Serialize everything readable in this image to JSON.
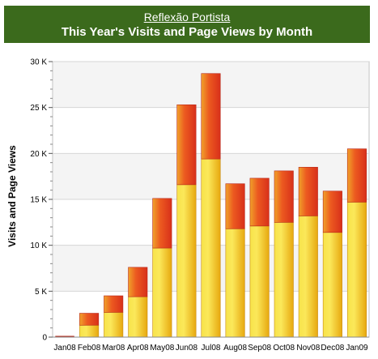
{
  "header": {
    "site_name": "Reflexão Portista",
    "title": "This Year's Visits and Page Views by Month"
  },
  "colors": {
    "header_bg": "#3b6a1c",
    "visits_fill": "#f5c21e",
    "page_views_fill": "#e8401c"
  },
  "chart_data": {
    "type": "bar",
    "stacked": true,
    "title": "This Year's Visits and Page Views by Month",
    "ylabel": "Visits and Page Views",
    "xlabel": "",
    "ylim": [
      0,
      30000
    ],
    "ytick_values": [
      0,
      5000,
      10000,
      15000,
      20000,
      25000,
      30000
    ],
    "ytick_labels": [
      "0",
      "5 K",
      "10 K",
      "15 K",
      "20 K",
      "25 K",
      "30 K"
    ],
    "grid": true,
    "categories": [
      "Jan08",
      "Feb08",
      "Mar08",
      "Apr08",
      "May08",
      "Jun08",
      "Jul08",
      "Aug08",
      "Sep08",
      "Oct08",
      "Nov08",
      "Dec08",
      "Jan09"
    ],
    "series": [
      {
        "values": [
          0,
          1300,
          2700,
          4400,
          9700,
          16600,
          19400,
          11800,
          12100,
          12500,
          13200,
          11400,
          14700
        ]
      },
      {
        "values": [
          0,
          1300,
          1800,
          3200,
          5400,
          8700,
          9300,
          4900,
          5200,
          5600,
          5300,
          4500,
          5800
        ]
      }
    ]
  }
}
